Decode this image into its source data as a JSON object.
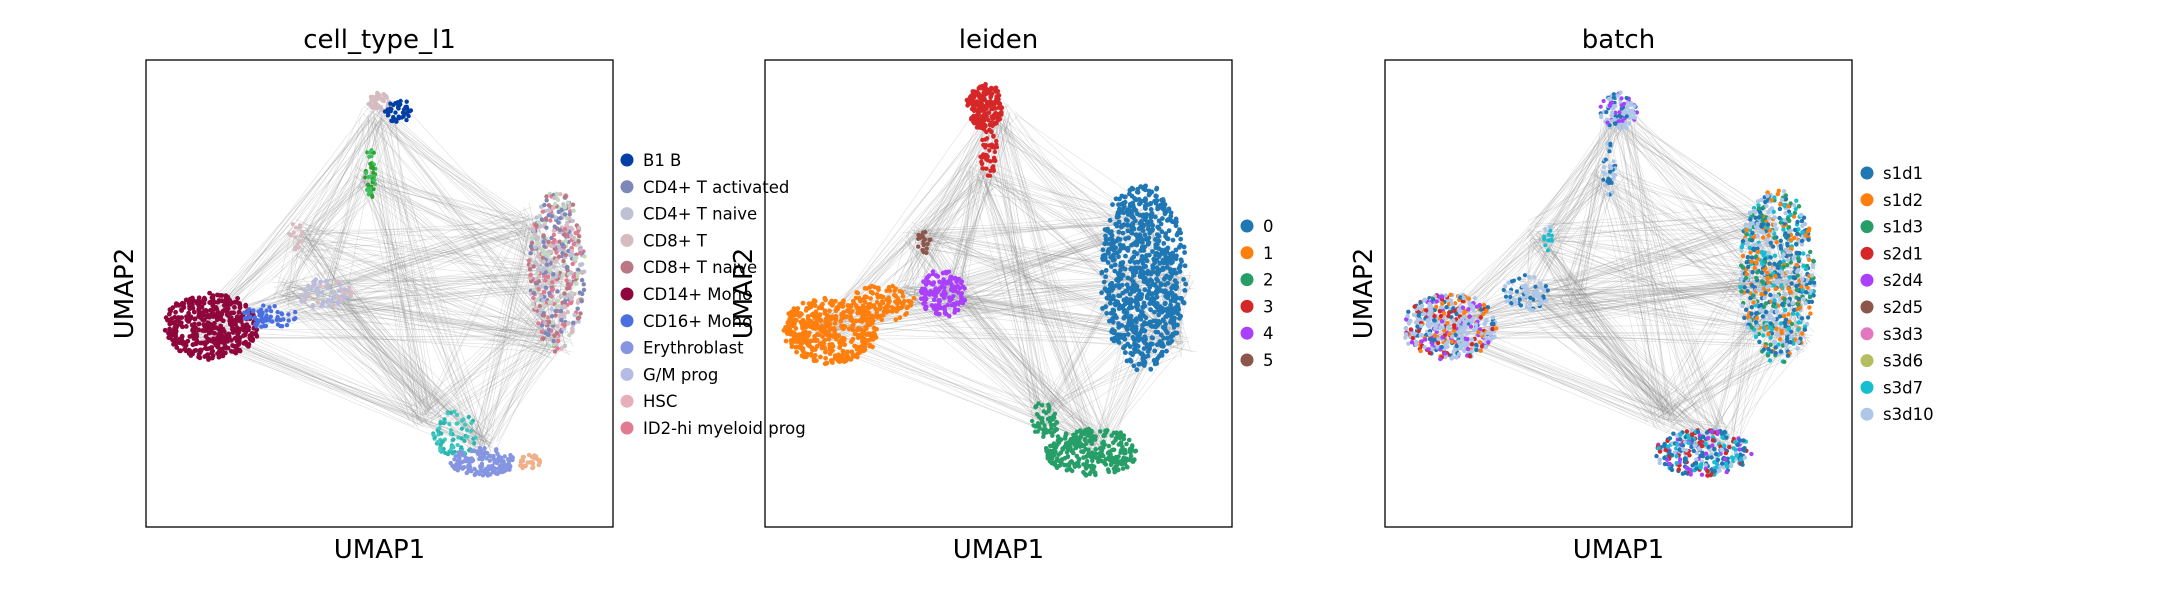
{
  "chart_data": [
    {
      "type": "scatter",
      "title": "cell_type_l1",
      "xlabel": "UMAP1",
      "ylabel": "UMAP2",
      "grid": false,
      "legend": "right",
      "series": [
        {
          "name": "B1 B",
          "color": "#023fa5"
        },
        {
          "name": "CD4+ T activated",
          "color": "#7d87b9"
        },
        {
          "name": "CD4+ T naive",
          "color": "#bec1d4"
        },
        {
          "name": "CD8+ T",
          "color": "#d6bcc0"
        },
        {
          "name": "CD8+ T naive",
          "color": "#bb7784"
        },
        {
          "name": "CD14+ Mono",
          "color": "#8e063b"
        },
        {
          "name": "CD16+ Mono",
          "color": "#4a6fe3"
        },
        {
          "name": "Erythroblast",
          "color": "#8595e1"
        },
        {
          "name": "G/M prog",
          "color": "#b5bbe3"
        },
        {
          "name": "HSC",
          "color": "#e6afb9"
        },
        {
          "name": "ID2-hi myeloid prog",
          "color": "#e07b91"
        }
      ]
    },
    {
      "type": "scatter",
      "title": "leiden",
      "xlabel": "UMAP1",
      "ylabel": "UMAP2",
      "grid": false,
      "legend": "right",
      "series": [
        {
          "name": "0",
          "color": "#1f77b4"
        },
        {
          "name": "1",
          "color": "#ff7f0e"
        },
        {
          "name": "2",
          "color": "#279e68"
        },
        {
          "name": "3",
          "color": "#d62728"
        },
        {
          "name": "4",
          "color": "#aa40fc"
        },
        {
          "name": "5",
          "color": "#8c564b"
        }
      ]
    },
    {
      "type": "scatter",
      "title": "batch",
      "xlabel": "UMAP1",
      "ylabel": "UMAP2",
      "grid": false,
      "legend": "right",
      "series": [
        {
          "name": "s1d1",
          "color": "#1f77b4"
        },
        {
          "name": "s1d2",
          "color": "#ff7f0e"
        },
        {
          "name": "s1d3",
          "color": "#279e68"
        },
        {
          "name": "s2d1",
          "color": "#d62728"
        },
        {
          "name": "s2d4",
          "color": "#aa40fc"
        },
        {
          "name": "s2d5",
          "color": "#8c564b"
        },
        {
          "name": "s3d3",
          "color": "#e377c2"
        },
        {
          "name": "s3d6",
          "color": "#b5bd61"
        },
        {
          "name": "s3d7",
          "color": "#17becf"
        },
        {
          "name": "s3d10",
          "color": "#aec7e8"
        }
      ]
    }
  ]
}
